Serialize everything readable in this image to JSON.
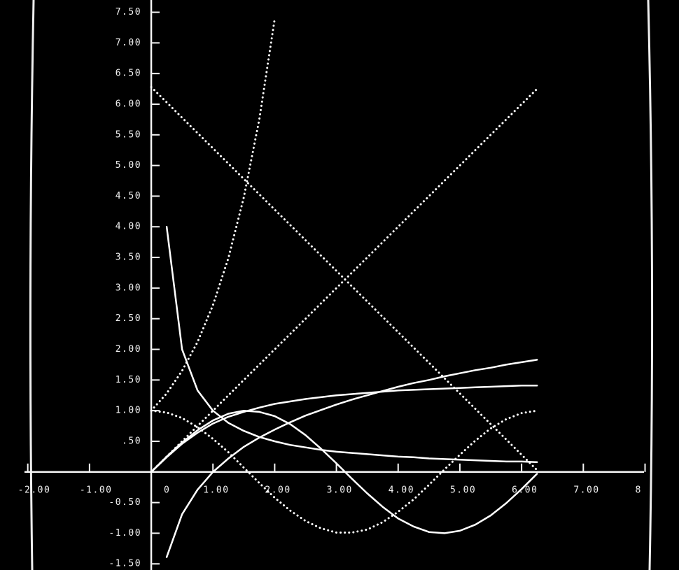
{
  "chart_data": {
    "type": "line",
    "x": [
      0,
      0.25,
      0.5,
      0.75,
      1,
      1.25,
      1.5,
      1.75,
      2,
      2.25,
      2.5,
      2.75,
      3,
      3.25,
      3.5,
      3.75,
      4,
      4.25,
      4.5,
      4.75,
      5,
      5.25,
      5.5,
      5.75,
      6,
      6.25
    ],
    "series": [
      {
        "color": "#ffffff",
        "style": "dotted",
        "values": [
          0,
          0.25,
          0.5,
          0.75,
          1,
          1.25,
          1.5,
          1.75,
          2,
          2.25,
          2.5,
          2.75,
          3,
          3.25,
          3.5,
          3.75,
          4,
          4.25,
          4.5,
          4.75,
          5,
          5.25,
          5.5,
          5.75,
          6,
          6.25
        ]
      },
      {
        "color": "#ffffff",
        "style": "dotted",
        "values": [
          6.28,
          6.03,
          5.78,
          5.53,
          5.28,
          5.03,
          4.78,
          4.53,
          4.28,
          4.03,
          3.78,
          3.53,
          3.28,
          3.03,
          2.78,
          2.53,
          2.28,
          2.03,
          1.78,
          1.53,
          1.28,
          1.03,
          0.78,
          0.53,
          0.28,
          0.03
        ]
      },
      {
        "color": "#ffffff",
        "style": "dotted",
        "values": [
          1,
          1.28,
          1.65,
          2.12,
          2.72,
          3.49,
          4.48,
          5.75,
          7.39,
          null,
          null,
          null,
          null,
          null,
          null,
          null,
          null,
          null,
          null,
          null,
          null,
          null,
          null,
          null,
          null,
          null
        ]
      },
      {
        "color": "#ffffff",
        "style": "dotted",
        "values": [
          1,
          0.97,
          0.88,
          0.73,
          0.54,
          0.32,
          0.07,
          -0.18,
          -0.42,
          -0.63,
          -0.8,
          -0.92,
          -0.99,
          -0.99,
          -0.94,
          -0.82,
          -0.65,
          -0.45,
          -0.21,
          0.04,
          0.28,
          0.51,
          0.71,
          0.86,
          0.96,
          1.0
        ]
      },
      {
        "color": "#ffffff",
        "style": "solid",
        "values": [
          0,
          0.25,
          0.48,
          0.68,
          0.84,
          0.95,
          1.0,
          0.98,
          0.91,
          0.78,
          0.6,
          0.38,
          0.14,
          -0.11,
          -0.35,
          -0.57,
          -0.76,
          -0.89,
          -0.98,
          -1.0,
          -0.96,
          -0.86,
          -0.71,
          -0.51,
          -0.28,
          -0.03
        ]
      },
      {
        "color": "#ffffff",
        "style": "solid",
        "values": [
          null,
          4,
          2,
          1.33,
          1,
          0.8,
          0.67,
          0.57,
          0.5,
          0.44,
          0.4,
          0.36,
          0.33,
          0.31,
          0.29,
          0.27,
          0.25,
          0.24,
          0.22,
          0.21,
          0.2,
          0.19,
          0.18,
          0.17,
          0.17,
          0.16
        ]
      },
      {
        "color": "#ffffff",
        "style": "solid",
        "values": [
          null,
          -1.39,
          -0.69,
          -0.29,
          0,
          0.22,
          0.41,
          0.56,
          0.69,
          0.81,
          0.92,
          1.01,
          1.1,
          1.18,
          1.25,
          1.32,
          1.39,
          1.45,
          1.5,
          1.56,
          1.61,
          1.66,
          1.7,
          1.75,
          1.79,
          1.83
        ]
      },
      {
        "color": "#ffffff",
        "style": "solid",
        "values": [
          0,
          0.24,
          0.46,
          0.64,
          0.79,
          0.9,
          0.98,
          1.05,
          1.11,
          1.15,
          1.19,
          1.22,
          1.25,
          1.27,
          1.29,
          1.31,
          1.33,
          1.34,
          1.35,
          1.36,
          1.37,
          1.38,
          1.39,
          1.4,
          1.41,
          1.41
        ]
      }
    ],
    "xlim": [
      -2.45,
      8.55
    ],
    "ylim": [
      -1.6,
      7.7
    ],
    "xticks": [
      {
        "value": -2,
        "label": "-2.00"
      },
      {
        "value": -1,
        "label": "-1.00"
      },
      0,
      {
        "value": 1,
        "label": "1.00"
      },
      {
        "value": 2,
        "label": "2.00"
      },
      {
        "value": 3,
        "label": "3.00"
      },
      {
        "value": 4,
        "label": "4.00"
      },
      {
        "value": 5,
        "label": "5.00"
      },
      {
        "value": 6,
        "label": "6.00"
      },
      {
        "value": 7,
        "label": "7.00"
      },
      {
        "value": 8,
        "label": "8"
      }
    ],
    "yticks": [
      {
        "value": -1.5,
        "label": "-1.50"
      },
      {
        "value": -1,
        "label": "-1.00"
      },
      {
        "value": -0.5,
        "label": "-0.50"
      },
      {
        "value": 0.5,
        "label": ".50"
      },
      {
        "value": 1,
        "label": "1.00"
      },
      {
        "value": 1.5,
        "label": "1.50"
      },
      {
        "value": 2,
        "label": "2.00"
      },
      {
        "value": 2.5,
        "label": "2.50"
      },
      {
        "value": 3,
        "label": "3.00"
      },
      {
        "value": 3.5,
        "label": "3.50"
      },
      {
        "value": 4,
        "label": "4.00"
      },
      {
        "value": 4.5,
        "label": "4.50"
      },
      {
        "value": 5,
        "label": "5.00"
      },
      {
        "value": 5.5,
        "label": "5.50"
      },
      {
        "value": 6,
        "label": "6.00"
      },
      {
        "value": 6.5,
        "label": "6.50"
      },
      {
        "value": 7,
        "label": "7.00"
      },
      {
        "value": 7.5,
        "label": "7.50"
      }
    ]
  }
}
